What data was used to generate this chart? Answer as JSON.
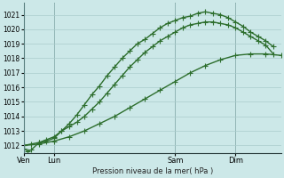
{
  "background_color": "#cce8e8",
  "grid_color": "#aacccc",
  "line_color": "#2d6e2d",
  "ylabel": "Pression niveau de la mer( hPa )",
  "ylim": [
    1011.5,
    1021.8
  ],
  "yticks": [
    1012,
    1013,
    1014,
    1015,
    1016,
    1017,
    1018,
    1019,
    1020,
    1021
  ],
  "xtick_labels": [
    "Ven",
    "Lun",
    "Sam",
    "Dim"
  ],
  "xtick_positions": [
    0,
    8,
    40,
    56
  ],
  "xlim": [
    0,
    68
  ],
  "series1_x": [
    0,
    1,
    2,
    4,
    6,
    8,
    10,
    12,
    14,
    16,
    18,
    20,
    22,
    24,
    26,
    28,
    30,
    32,
    34,
    36,
    38,
    40,
    42,
    44,
    46,
    48,
    50,
    52,
    54,
    56,
    58,
    60,
    62,
    64,
    66
  ],
  "series1_y": [
    1011.8,
    1011.6,
    1011.7,
    1012.2,
    1012.3,
    1012.5,
    1013.0,
    1013.5,
    1014.1,
    1014.8,
    1015.5,
    1016.1,
    1016.8,
    1017.4,
    1018.0,
    1018.5,
    1019.0,
    1019.3,
    1019.7,
    1020.1,
    1020.4,
    1020.6,
    1020.8,
    1020.9,
    1021.1,
    1021.2,
    1021.1,
    1021.0,
    1020.8,
    1020.5,
    1020.2,
    1019.8,
    1019.5,
    1019.2,
    1018.8
  ],
  "series2_x": [
    0,
    2,
    4,
    6,
    8,
    10,
    12,
    14,
    16,
    18,
    20,
    22,
    24,
    26,
    28,
    30,
    32,
    34,
    36,
    38,
    40,
    42,
    44,
    46,
    48,
    50,
    52,
    54,
    56,
    58,
    60,
    62,
    64,
    66
  ],
  "series2_y": [
    1012.0,
    1012.1,
    1012.2,
    1012.4,
    1012.6,
    1013.0,
    1013.3,
    1013.6,
    1014.0,
    1014.5,
    1015.0,
    1015.6,
    1016.2,
    1016.8,
    1017.4,
    1017.9,
    1018.4,
    1018.8,
    1019.2,
    1019.5,
    1019.8,
    1020.1,
    1020.3,
    1020.4,
    1020.5,
    1020.5,
    1020.4,
    1020.3,
    1020.1,
    1019.8,
    1019.5,
    1019.2,
    1018.9,
    1018.3
  ],
  "series3_x": [
    0,
    4,
    8,
    12,
    16,
    20,
    24,
    28,
    32,
    36,
    40,
    44,
    48,
    52,
    56,
    60,
    64,
    68
  ],
  "series3_y": [
    1012.0,
    1012.1,
    1012.3,
    1012.6,
    1013.0,
    1013.5,
    1014.0,
    1014.6,
    1015.2,
    1015.8,
    1016.4,
    1017.0,
    1017.5,
    1017.9,
    1018.2,
    1018.3,
    1018.3,
    1018.2
  ],
  "marker_size": 4,
  "linewidth": 1.0
}
